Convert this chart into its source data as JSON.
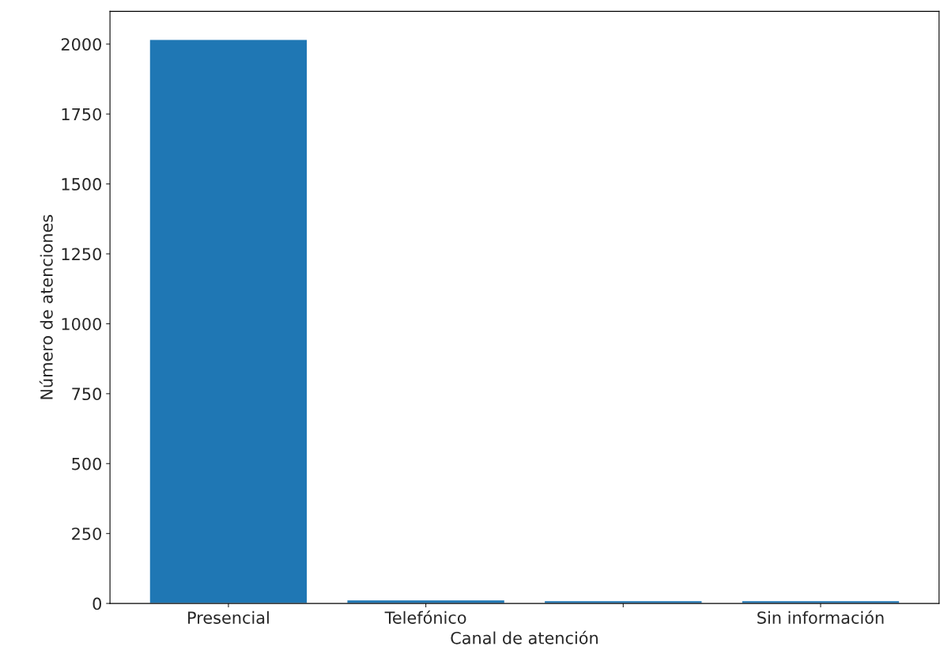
{
  "chart_data": {
    "type": "bar",
    "xlabel": "Canal de atención",
    "ylabel": "Número de atenciones",
    "categories": [
      "Presencial",
      "Telefónico",
      null,
      "Sin información"
    ],
    "values": [
      2017,
      13,
      10,
      10
    ],
    "color": "#1f77b4",
    "ylim": [
      0,
      2117
    ],
    "yticks": [
      0,
      250,
      500,
      750,
      1000,
      1250,
      1500,
      1750,
      2000
    ],
    "grid": false
  }
}
